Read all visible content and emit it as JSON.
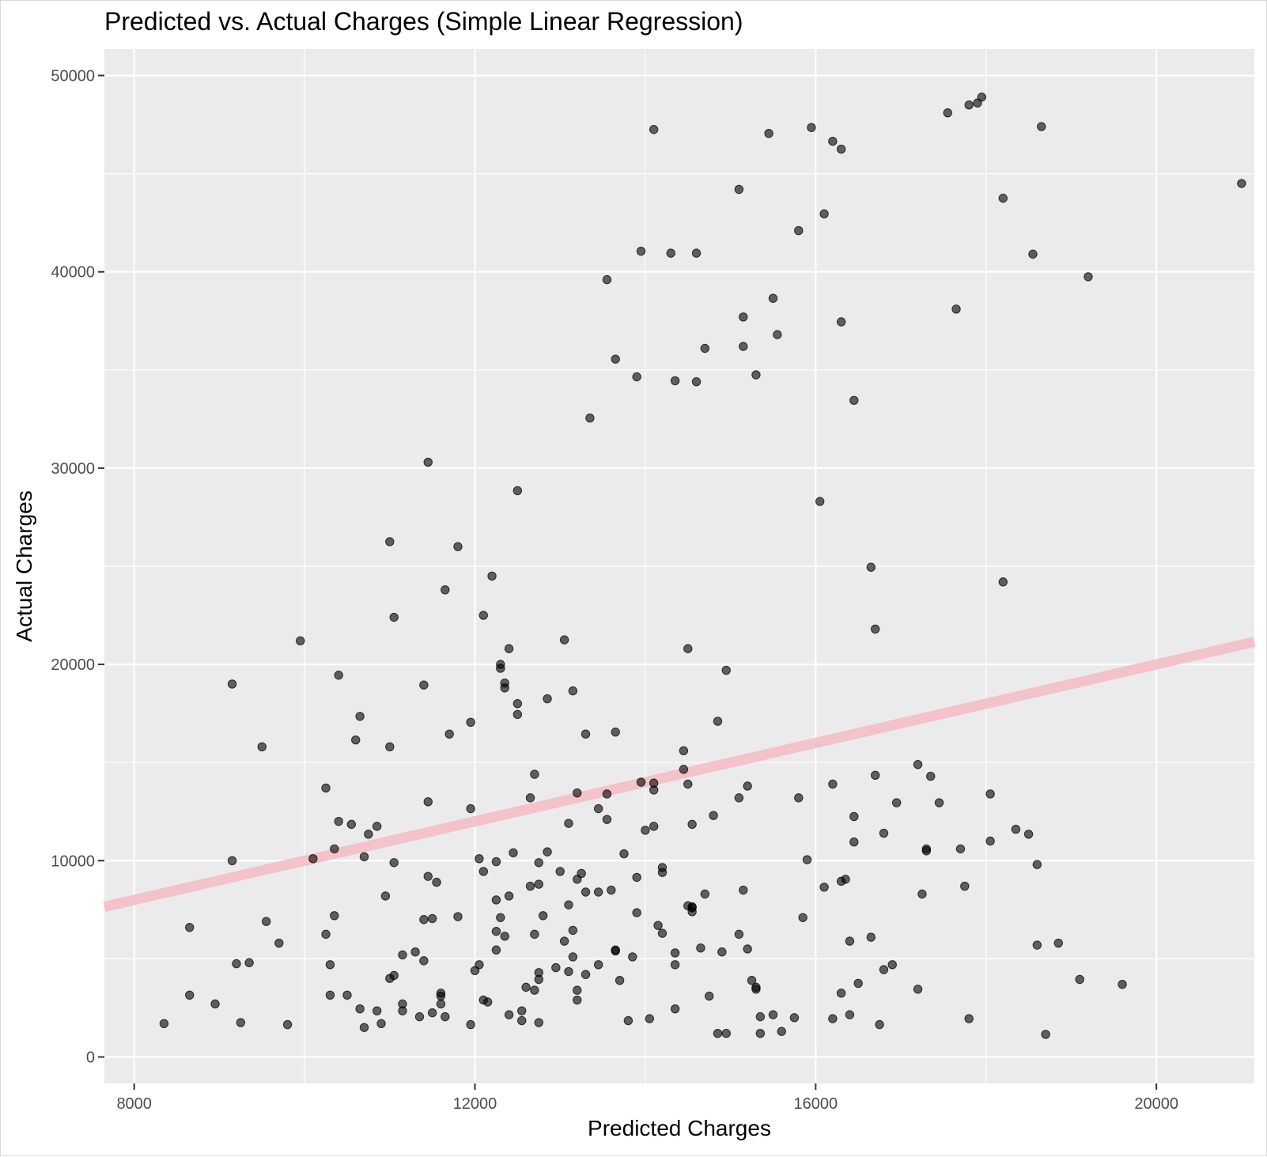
{
  "chart_data": {
    "type": "scatter",
    "title": "Predicted vs. Actual Charges (Simple Linear Regression)",
    "xlabel": "Predicted Charges",
    "ylabel": "Actual Charges",
    "xlim": [
      7650,
      21150
    ],
    "ylim": [
      -1350,
      51350
    ],
    "x_ticks": [
      8000,
      12000,
      16000,
      20000
    ],
    "x_tick_labels": [
      "8000",
      "12000",
      "16000",
      "20000"
    ],
    "y_ticks": [
      0,
      10000,
      20000,
      30000,
      40000,
      50000
    ],
    "y_tick_labels": [
      "0",
      "10000",
      "20000",
      "30000",
      "40000",
      "50000"
    ],
    "grid": true,
    "reference_line": {
      "type": "identity",
      "slope": 1,
      "intercept": 0,
      "color": "#f4c2c9"
    },
    "point_color": "#000000",
    "background": "#ebebeb",
    "points": [
      [
        8350,
        1700
      ],
      [
        8650,
        6600
      ],
      [
        8650,
        3150
      ],
      [
        8950,
        2700
      ],
      [
        9150,
        19000
      ],
      [
        9150,
        10000
      ],
      [
        9200,
        4750
      ],
      [
        9250,
        1750
      ],
      [
        9350,
        4800
      ],
      [
        9500,
        15800
      ],
      [
        9550,
        6900
      ],
      [
        9700,
        5800
      ],
      [
        9800,
        1650
      ],
      [
        9950,
        21200
      ],
      [
        10100,
        10100
      ],
      [
        10250,
        13700
      ],
      [
        10250,
        6250
      ],
      [
        10300,
        3150
      ],
      [
        10300,
        4700
      ],
      [
        10350,
        10600
      ],
      [
        10350,
        7200
      ],
      [
        10400,
        19450
      ],
      [
        10400,
        12000
      ],
      [
        10500,
        3150
      ],
      [
        10550,
        11850
      ],
      [
        10600,
        16150
      ],
      [
        10650,
        17350
      ],
      [
        10650,
        2450
      ],
      [
        10700,
        10200
      ],
      [
        10700,
        1500
      ],
      [
        10750,
        11350
      ],
      [
        10850,
        2350
      ],
      [
        10850,
        11750
      ],
      [
        10900,
        1700
      ],
      [
        10950,
        8200
      ],
      [
        11000,
        26250
      ],
      [
        11000,
        15800
      ],
      [
        11050,
        22400
      ],
      [
        11000,
        4000
      ],
      [
        11050,
        4150
      ],
      [
        11050,
        9900
      ],
      [
        11150,
        2700
      ],
      [
        11150,
        5200
      ],
      [
        11150,
        2350
      ],
      [
        11300,
        5350
      ],
      [
        11350,
        2050
      ],
      [
        11400,
        18950
      ],
      [
        11400,
        7000
      ],
      [
        11400,
        4900
      ],
      [
        11450,
        13000
      ],
      [
        11450,
        30300
      ],
      [
        11450,
        9200
      ],
      [
        11500,
        7050
      ],
      [
        11500,
        2250
      ],
      [
        11550,
        8900
      ],
      [
        11600,
        3250
      ],
      [
        11600,
        2700
      ],
      [
        11600,
        3100
      ],
      [
        11650,
        2050
      ],
      [
        11650,
        23800
      ],
      [
        11700,
        16450
      ],
      [
        11800,
        7150
      ],
      [
        11800,
        26000
      ],
      [
        11950,
        17050
      ],
      [
        11950,
        12650
      ],
      [
        11950,
        1650
      ],
      [
        12000,
        4400
      ],
      [
        12050,
        10100
      ],
      [
        12050,
        4700
      ],
      [
        12100,
        2900
      ],
      [
        12100,
        22500
      ],
      [
        12100,
        9450
      ],
      [
        12150,
        2800
      ],
      [
        12200,
        24500
      ],
      [
        12250,
        6400
      ],
      [
        12250,
        5450
      ],
      [
        12250,
        9950
      ],
      [
        12250,
        8000
      ],
      [
        12300,
        7100
      ],
      [
        12300,
        19800
      ],
      [
        12300,
        20000
      ],
      [
        12350,
        18800
      ],
      [
        12350,
        19050
      ],
      [
        12350,
        6150
      ],
      [
        12400,
        2150
      ],
      [
        12400,
        20800
      ],
      [
        12400,
        8200
      ],
      [
        12450,
        10400
      ],
      [
        12500,
        28850
      ],
      [
        12500,
        18000
      ],
      [
        12500,
        17450
      ],
      [
        12550,
        1850
      ],
      [
        12550,
        2350
      ],
      [
        12600,
        3550
      ],
      [
        12650,
        8700
      ],
      [
        12650,
        13200
      ],
      [
        12700,
        14400
      ],
      [
        12700,
        3400
      ],
      [
        12700,
        6250
      ],
      [
        12750,
        9900
      ],
      [
        12750,
        4300
      ],
      [
        12750,
        3950
      ],
      [
        12750,
        8800
      ],
      [
        12750,
        1750
      ],
      [
        12800,
        7200
      ],
      [
        12850,
        18250
      ],
      [
        12850,
        10450
      ],
      [
        12950,
        4550
      ],
      [
        13000,
        9450
      ],
      [
        13050,
        21250
      ],
      [
        13050,
        5900
      ],
      [
        13100,
        11900
      ],
      [
        13100,
        7750
      ],
      [
        13100,
        4350
      ],
      [
        13150,
        18650
      ],
      [
        13150,
        6450
      ],
      [
        13150,
        5100
      ],
      [
        13200,
        13450
      ],
      [
        13200,
        9050
      ],
      [
        13200,
        3400
      ],
      [
        13200,
        2900
      ],
      [
        13250,
        9350
      ],
      [
        13300,
        16450
      ],
      [
        13300,
        8400
      ],
      [
        13300,
        4200
      ],
      [
        13350,
        32550
      ],
      [
        13450,
        12650
      ],
      [
        13450,
        8400
      ],
      [
        13450,
        4700
      ],
      [
        13550,
        39600
      ],
      [
        13550,
        13400
      ],
      [
        13550,
        12100
      ],
      [
        13600,
        8500
      ],
      [
        13650,
        35550
      ],
      [
        13650,
        16550
      ],
      [
        13650,
        5450
      ],
      [
        13650,
        5400
      ],
      [
        13700,
        3900
      ],
      [
        13750,
        10350
      ],
      [
        13800,
        1850
      ],
      [
        13850,
        5100
      ],
      [
        13900,
        34650
      ],
      [
        13900,
        9150
      ],
      [
        13900,
        7350
      ],
      [
        13950,
        14000
      ],
      [
        13950,
        41050
      ],
      [
        14000,
        11550
      ],
      [
        14050,
        1950
      ],
      [
        14100,
        47250
      ],
      [
        14100,
        13950
      ],
      [
        14100,
        13600
      ],
      [
        14100,
        11750
      ],
      [
        14150,
        6700
      ],
      [
        14200,
        9650
      ],
      [
        14200,
        9400
      ],
      [
        14200,
        6300
      ],
      [
        14300,
        40950
      ],
      [
        14350,
        34450
      ],
      [
        14350,
        4700
      ],
      [
        14350,
        2450
      ],
      [
        14350,
        5300
      ],
      [
        14500,
        20800
      ],
      [
        14450,
        15600
      ],
      [
        14450,
        14650
      ],
      [
        14500,
        13900
      ],
      [
        14500,
        7700
      ],
      [
        14550,
        7600
      ],
      [
        14550,
        7650
      ],
      [
        14550,
        11850
      ],
      [
        14550,
        7400
      ],
      [
        14600,
        40950
      ],
      [
        14600,
        34400
      ],
      [
        14700,
        36100
      ],
      [
        14650,
        5550
      ],
      [
        14700,
        8300
      ],
      [
        14750,
        3100
      ],
      [
        14800,
        12300
      ],
      [
        14850,
        17100
      ],
      [
        14850,
        1200
      ],
      [
        14950,
        19700
      ],
      [
        14900,
        5350
      ],
      [
        14950,
        1200
      ],
      [
        15100,
        44200
      ],
      [
        15100,
        13200
      ],
      [
        15100,
        6250
      ],
      [
        15150,
        8500
      ],
      [
        15150,
        37700
      ],
      [
        15150,
        36200
      ],
      [
        15200,
        13800
      ],
      [
        15200,
        5500
      ],
      [
        15250,
        3900
      ],
      [
        15300,
        34750
      ],
      [
        15300,
        3550
      ],
      [
        15300,
        3450
      ],
      [
        15350,
        1200
      ],
      [
        15350,
        2050
      ],
      [
        15450,
        47050
      ],
      [
        15500,
        38650
      ],
      [
        15500,
        2150
      ],
      [
        15550,
        36800
      ],
      [
        15600,
        1300
      ],
      [
        15750,
        2000
      ],
      [
        15800,
        42100
      ],
      [
        15800,
        13200
      ],
      [
        15850,
        7100
      ],
      [
        15900,
        10050
      ],
      [
        15950,
        47350
      ],
      [
        16050,
        28300
      ],
      [
        16100,
        42950
      ],
      [
        16100,
        8650
      ],
      [
        16200,
        46650
      ],
      [
        16200,
        13900
      ],
      [
        16200,
        1950
      ],
      [
        16300,
        46250
      ],
      [
        16300,
        37450
      ],
      [
        16300,
        8950
      ],
      [
        16300,
        3250
      ],
      [
        16350,
        9050
      ],
      [
        16400,
        2150
      ],
      [
        16400,
        5900
      ],
      [
        16450,
        33450
      ],
      [
        16450,
        10950
      ],
      [
        16450,
        12250
      ],
      [
        16500,
        3750
      ],
      [
        16650,
        24950
      ],
      [
        16650,
        6100
      ],
      [
        16700,
        21800
      ],
      [
        16700,
        14350
      ],
      [
        16750,
        1650
      ],
      [
        16800,
        11400
      ],
      [
        16800,
        4450
      ],
      [
        16900,
        4700
      ],
      [
        16950,
        12950
      ],
      [
        17200,
        3450
      ],
      [
        17200,
        14900
      ],
      [
        17250,
        8300
      ],
      [
        17300,
        10600
      ],
      [
        17300,
        10500
      ],
      [
        17350,
        14300
      ],
      [
        17450,
        12950
      ],
      [
        17550,
        48100
      ],
      [
        17650,
        38100
      ],
      [
        17700,
        10600
      ],
      [
        17750,
        8700
      ],
      [
        17800,
        48500
      ],
      [
        17800,
        1950
      ],
      [
        17900,
        48600
      ],
      [
        17950,
        48900
      ],
      [
        18050,
        11000
      ],
      [
        18050,
        13400
      ],
      [
        18200,
        43750
      ],
      [
        18200,
        24200
      ],
      [
        18350,
        11600
      ],
      [
        18500,
        11350
      ],
      [
        18550,
        40900
      ],
      [
        18600,
        9800
      ],
      [
        18600,
        5700
      ],
      [
        18650,
        47400
      ],
      [
        18700,
        1150
      ],
      [
        18850,
        5800
      ],
      [
        19100,
        3950
      ],
      [
        19200,
        39750
      ],
      [
        19600,
        3700
      ],
      [
        21000,
        44500
      ]
    ]
  }
}
